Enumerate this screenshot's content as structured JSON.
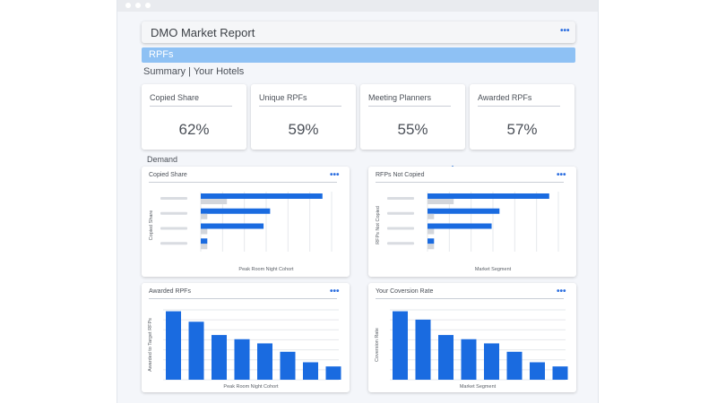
{
  "header": {
    "title": "DMO Market Report"
  },
  "tabs": [
    {
      "label": "RPFs"
    }
  ],
  "summary": {
    "title": "Summary | Your Hotels",
    "cards": [
      {
        "label": "Copied Share",
        "value": "62%"
      },
      {
        "label": "Unique RPFs",
        "value": "59%"
      },
      {
        "label": "Meeting Planners",
        "value": "55%"
      },
      {
        "label": "Awarded RPFs",
        "value": "57%"
      }
    ]
  },
  "demand": {
    "label": "Demand"
  },
  "colors": {
    "accent": "#1a6be0",
    "secondary": "#d3d6db",
    "tab": "#8ec1f4"
  },
  "icons": {
    "panel_menu": "more-horizontal-icon"
  },
  "chart_data": [
    {
      "type": "bar",
      "orientation": "horizontal",
      "title": "Copied Share",
      "xlabel": "Peak Room Night Cohort",
      "ylabel": "Copied Share",
      "xlim": [
        0,
        1
      ],
      "categories": [
        "",
        "",
        "",
        ""
      ],
      "series": [
        {
          "values": [
            0.93,
            0.53,
            0.48,
            0.05
          ]
        },
        {
          "values": [
            0.2,
            0.05,
            0.05,
            0.05
          ]
        }
      ]
    },
    {
      "type": "bar",
      "orientation": "horizontal",
      "title": "RFPs Not Copied",
      "xlabel": "Market Segment",
      "ylabel": "RFPs Not Copied",
      "xlim": [
        0,
        1
      ],
      "categories": [
        "",
        "",
        "",
        ""
      ],
      "series": [
        {
          "values": [
            0.93,
            0.55,
            0.49,
            0.05
          ]
        },
        {
          "values": [
            0.2,
            0.05,
            0.05,
            0.05
          ]
        }
      ]
    },
    {
      "type": "bar",
      "title": "Awarded RPFs",
      "xlabel": "Peak Room Night Cohort",
      "ylabel": "Awarded to Target RFPs",
      "ylim": [
        0,
        1
      ],
      "categories": [
        "",
        "",
        "",
        "",
        "",
        "",
        "",
        ""
      ],
      "values": [
        0.98,
        0.83,
        0.64,
        0.58,
        0.52,
        0.4,
        0.25,
        0.19
      ]
    },
    {
      "type": "bar",
      "title": "Your Coversion Rate",
      "xlabel": "Market Segment",
      "ylabel": "Coversion Rate",
      "ylim": [
        0,
        1
      ],
      "categories": [
        "",
        "",
        "",
        "",
        "",
        "",
        "",
        ""
      ],
      "values": [
        0.98,
        0.86,
        0.64,
        0.58,
        0.52,
        0.4,
        0.25,
        0.19
      ]
    }
  ]
}
